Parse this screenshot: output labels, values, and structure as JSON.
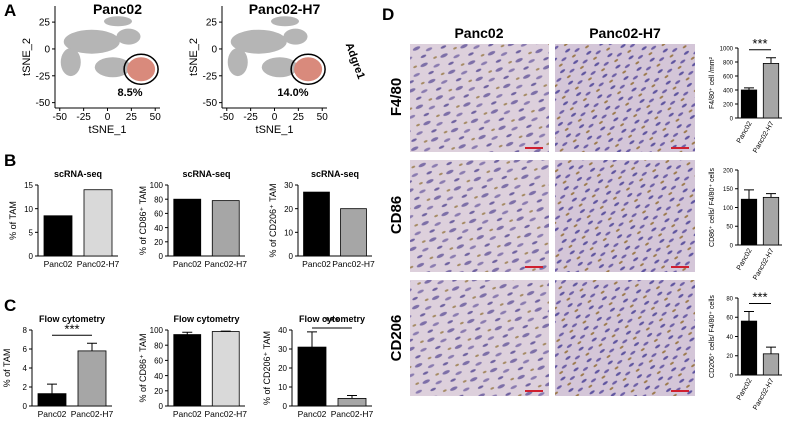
{
  "panels": [
    "A",
    "B",
    "C",
    "D"
  ],
  "micrographs": {
    "columns": [
      "Panc02",
      "Panc02-H7"
    ],
    "rows": [
      "F4/80",
      "CD86",
      "CD206"
    ]
  },
  "chart_data": [
    {
      "type": "scatter",
      "title": "Panc02",
      "xlabel": "tSNE_1",
      "ylabel": "tSNE_2",
      "xlim": [
        -55,
        55
      ],
      "xticks": [
        -50,
        -25,
        0,
        25,
        50
      ],
      "ylim": [
        -55,
        40
      ],
      "yticks": [
        25,
        0,
        -25,
        -50
      ],
      "annotations": [
        "8.5%"
      ]
    },
    {
      "type": "scatter",
      "title": "Panc02-H7",
      "xlabel": "tSNE_1",
      "ylabel": "tSNE_2",
      "xlim": [
        -55,
        55
      ],
      "xticks": [
        -50,
        -25,
        0,
        25,
        50
      ],
      "ylim": [
        -55,
        40
      ],
      "yticks": [
        25,
        0,
        -25,
        -50
      ],
      "annotations": [
        "14.0%",
        "Adgre1"
      ]
    },
    {
      "type": "bar",
      "title": "scRNA-seq",
      "ylabel": "% of TAM",
      "categories": [
        "Panc02",
        "Panc02-H7"
      ],
      "values": [
        8.5,
        14.0
      ],
      "colors": [
        "#000000",
        "#d9d9d9"
      ],
      "ylim": [
        0,
        15
      ],
      "yticks": [
        0,
        5,
        10,
        15
      ]
    },
    {
      "type": "bar",
      "title": "scRNA-seq",
      "ylabel": "% of CD86⁺ TAM",
      "categories": [
        "Panc02",
        "Panc02-H7"
      ],
      "values": [
        80,
        78
      ],
      "colors": [
        "#000000",
        "#a6a6a6"
      ],
      "ylim": [
        0,
        100
      ],
      "yticks": [
        0,
        20,
        40,
        60,
        80,
        100
      ]
    },
    {
      "type": "bar",
      "title": "scRNA-seq",
      "ylabel": "% of CD206⁺ TAM",
      "categories": [
        "Panc02",
        "Panc02-H7"
      ],
      "values": [
        27,
        20
      ],
      "colors": [
        "#000000",
        "#a6a6a6"
      ],
      "ylim": [
        0,
        30
      ],
      "yticks": [
        0,
        10,
        20,
        30
      ]
    },
    {
      "type": "bar",
      "title": "Flow cytometry",
      "ylabel": "% of TAM",
      "categories": [
        "Panc02",
        "Panc02-H7"
      ],
      "values": [
        1.3,
        5.8
      ],
      "errors": [
        1.0,
        0.8
      ],
      "colors": [
        "#000000",
        "#a6a6a6"
      ],
      "ylim": [
        0,
        8
      ],
      "yticks": [
        0,
        2,
        4,
        6,
        8
      ],
      "significance": "***"
    },
    {
      "type": "bar",
      "title": "Flow cytometry",
      "ylabel": "% of CD86⁺ TAM",
      "categories": [
        "Panc02",
        "Panc02-H7"
      ],
      "values": [
        94,
        98
      ],
      "errors": [
        3,
        0.5
      ],
      "colors": [
        "#000000",
        "#d9d9d9"
      ],
      "ylim": [
        0,
        100
      ],
      "yticks": [
        0,
        20,
        40,
        60,
        80,
        100
      ]
    },
    {
      "type": "bar",
      "title": "Flow cytometry",
      "ylabel": "% of CD206⁺ TAM",
      "categories": [
        "Panc02",
        "Panc02-H7"
      ],
      "values": [
        31,
        4
      ],
      "errors": [
        8,
        1.5
      ],
      "colors": [
        "#000000",
        "#a6a6a6"
      ],
      "ylim": [
        0,
        40
      ],
      "yticks": [
        0,
        10,
        20,
        30,
        40
      ],
      "significance": "***"
    },
    {
      "type": "bar",
      "ylabel": "F4/80⁺ cell /mm²",
      "categories": [
        "Panc02",
        "Panc02-H7"
      ],
      "values": [
        400,
        780
      ],
      "errors": [
        30,
        80
      ],
      "colors": [
        "#000000",
        "#a6a6a6"
      ],
      "ylim": [
        0,
        1000
      ],
      "yticks": [
        0,
        200,
        400,
        600,
        800,
        1000
      ],
      "significance": "***"
    },
    {
      "type": "bar",
      "ylabel": "CD86⁺ cells/ F4/80⁺ cells",
      "categories": [
        "Panc02",
        "Panc02-H7"
      ],
      "values": [
        122,
        127
      ],
      "errors": [
        25,
        10
      ],
      "colors": [
        "#000000",
        "#a6a6a6"
      ],
      "ylim": [
        0,
        200
      ],
      "yticks": [
        0,
        50,
        100,
        150,
        200
      ]
    },
    {
      "type": "bar",
      "ylabel": "CD206⁺ cells/ F4/80⁺ cells",
      "categories": [
        "Panc02",
        "Panc02-H7"
      ],
      "values": [
        56,
        22
      ],
      "errors": [
        10,
        7
      ],
      "colors": [
        "#000000",
        "#a6a6a6"
      ],
      "ylim": [
        0,
        80
      ],
      "yticks": [
        0,
        20,
        40,
        60,
        80
      ],
      "significance": "***"
    }
  ]
}
